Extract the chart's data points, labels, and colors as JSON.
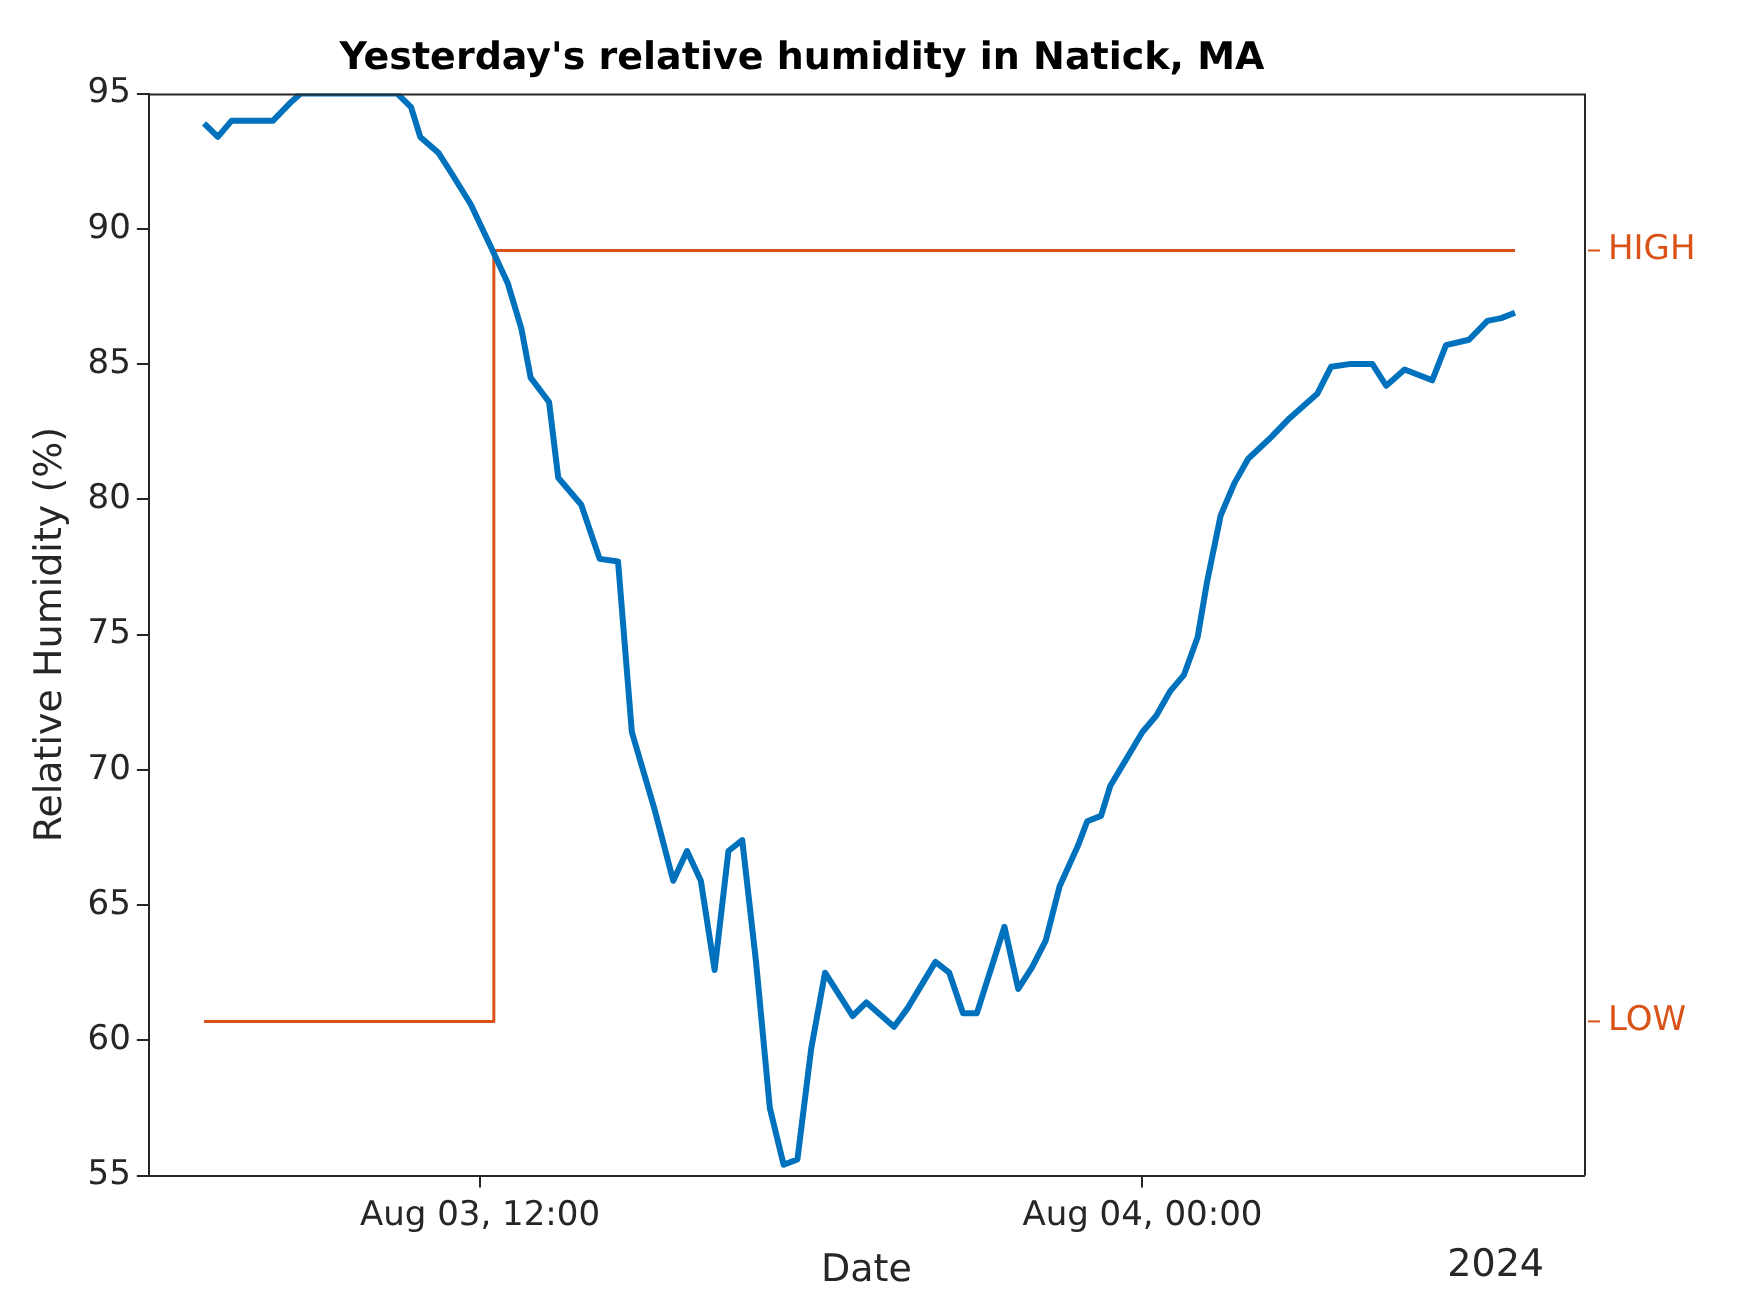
{
  "chart_data": {
    "type": "line",
    "title": "Yesterday's relative humidity in Natick, MA",
    "xlabel": "Date",
    "ylabel": "Relative Humidity (%)",
    "annotations": [
      "2024",
      "HIGH",
      "LOW"
    ],
    "xlim": [
      "2024-08-03T06:00",
      "2024-08-04T08:00"
    ],
    "xticks": [
      {
        "value": "2024-08-03T12:00",
        "label": "Aug 03, 12:00"
      },
      {
        "value": "2024-08-04T00:00",
        "label": "Aug 04, 00:00"
      }
    ],
    "ylim": [
      55,
      95
    ],
    "yticks": [
      55,
      60,
      65,
      70,
      75,
      80,
      85,
      90,
      95
    ],
    "legend": false,
    "x": [
      "2024-08-03T07:00",
      "2024-08-03T07:15",
      "2024-08-03T07:30",
      "2024-08-03T08:15",
      "2024-08-03T08:35",
      "2024-08-03T08:45",
      "2024-08-03T10:30",
      "2024-08-03T10:45",
      "2024-08-03T10:55",
      "2024-08-03T11:15",
      "2024-08-03T11:30",
      "2024-08-03T11:50",
      "2024-08-03T12:15",
      "2024-08-03T12:30",
      "2024-08-03T12:45",
      "2024-08-03T12:55",
      "2024-08-03T13:15",
      "2024-08-03T13:25",
      "2024-08-03T13:50",
      "2024-08-03T14:10",
      "2024-08-03T14:30",
      "2024-08-03T14:45",
      "2024-08-03T15:10",
      "2024-08-03T15:30",
      "2024-08-03T15:45",
      "2024-08-03T16:00",
      "2024-08-03T16:15",
      "2024-08-03T16:30",
      "2024-08-03T16:45",
      "2024-08-03T17:00",
      "2024-08-03T17:15",
      "2024-08-03T17:30",
      "2024-08-03T17:45",
      "2024-08-03T18:00",
      "2024-08-03T18:15",
      "2024-08-03T18:30",
      "2024-08-03T18:45",
      "2024-08-03T19:00",
      "2024-08-03T19:30",
      "2024-08-03T19:45",
      "2024-08-03T20:15",
      "2024-08-03T20:30",
      "2024-08-03T20:45",
      "2024-08-03T21:00",
      "2024-08-03T21:30",
      "2024-08-03T21:45",
      "2024-08-03T22:00",
      "2024-08-03T22:15",
      "2024-08-03T22:30",
      "2024-08-03T22:50",
      "2024-08-03T23:00",
      "2024-08-03T23:15",
      "2024-08-03T23:25",
      "2024-08-04T00:00",
      "2024-08-04T00:15",
      "2024-08-04T00:30",
      "2024-08-04T00:45",
      "2024-08-04T01:00",
      "2024-08-04T01:10",
      "2024-08-04T01:25",
      "2024-08-04T01:40",
      "2024-08-04T01:55",
      "2024-08-04T02:20",
      "2024-08-04T02:40",
      "2024-08-04T03:10",
      "2024-08-04T03:25",
      "2024-08-04T03:45",
      "2024-08-04T04:10",
      "2024-08-04T04:25",
      "2024-08-04T04:45",
      "2024-08-04T05:15",
      "2024-08-04T05:30",
      "2024-08-04T05:55",
      "2024-08-04T06:15",
      "2024-08-04T06:30",
      "2024-08-04T06:45"
    ],
    "series": [
      {
        "color": "#0072bd",
        "values": [
          93.9,
          93.4,
          94.0,
          94.0,
          94.7,
          95,
          95,
          94.5,
          93.4,
          92.8,
          92.0,
          90.9,
          89.1,
          88.0,
          86.3,
          84.5,
          83.6,
          80.8,
          79.8,
          77.8,
          77.7,
          71.4,
          68.5,
          65.9,
          67.0,
          65.9,
          62.6,
          67.0,
          67.4,
          62.9,
          57.5,
          55.4,
          55.6,
          59.7,
          62.5,
          61.7,
          60.9,
          61.4,
          60.5,
          61.2,
          62.9,
          62.5,
          61.0,
          61.0,
          64.2,
          61.9,
          62.7,
          63.7,
          65.7,
          67.2,
          68.1,
          68.3,
          69.4,
          71.4,
          72.0,
          72.9,
          73.5,
          74.9,
          76.9,
          79.4,
          80.6,
          81.5,
          82.3,
          83.0,
          83.9,
          84.9,
          85.0,
          85.0,
          84.2,
          84.8,
          84.4,
          85.7,
          85.9,
          86.6,
          86.7,
          86.9
        ]
      },
      {
        "type": "step",
        "color": "#d95319",
        "x": [
          "2024-08-03T07:00",
          "2024-08-03T12:15",
          "2024-08-04T06:45"
        ],
        "values": [
          60.7,
          89.2,
          89.2
        ]
      }
    ]
  }
}
